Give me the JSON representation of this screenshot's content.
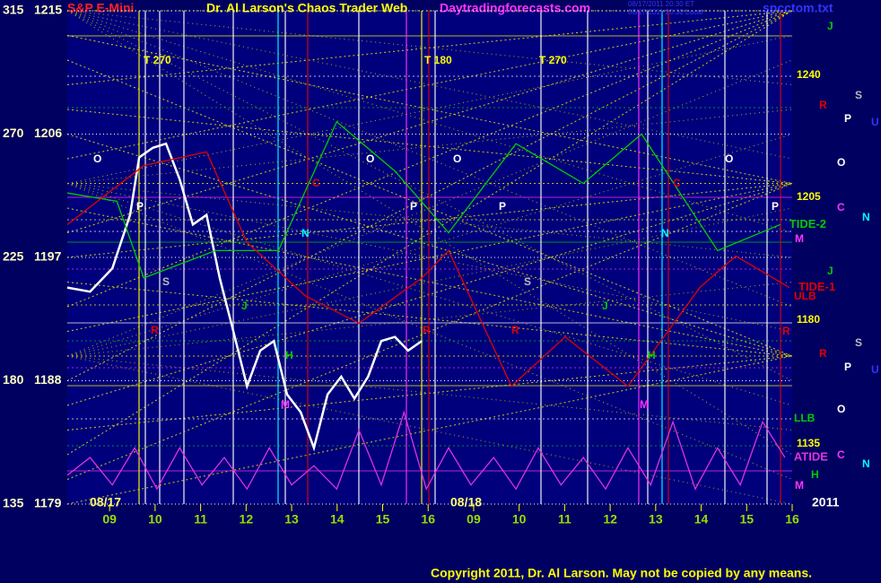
{
  "chart_data": {
    "type": "line",
    "instrument": "S&P E-Mini",
    "title": "Dr. Al Larson's Chaos Trader Web",
    "site": "Daytradingforecasts.com",
    "timestamps": [
      "08/17/2011 20:30 ET",
      "08/17/2011 20:30 Local"
    ],
    "file": "spcctom.txt",
    "copyright": "Copyright 2011, Dr. Al Larson. May not be copied by any means.",
    "dates": [
      "08/17",
      "08/18"
    ],
    "year": "2011",
    "xlim": [
      0.07,
      16
    ],
    "xticks": [
      {
        "value": 1,
        "label": "09"
      },
      {
        "value": 2,
        "label": "10"
      },
      {
        "value": 3,
        "label": "11"
      },
      {
        "value": 4,
        "label": "12"
      },
      {
        "value": 5,
        "label": "13"
      },
      {
        "value": 6,
        "label": "14"
      },
      {
        "value": 7,
        "label": "15"
      },
      {
        "value": 8,
        "label": "16"
      },
      {
        "value": 9,
        "label": "09"
      },
      {
        "value": 10,
        "label": "10"
      },
      {
        "value": 11,
        "label": "11"
      },
      {
        "value": 12,
        "label": "12"
      },
      {
        "value": 13,
        "label": "13"
      },
      {
        "value": 14,
        "label": "14"
      },
      {
        "value": 15,
        "label": "15"
      },
      {
        "value": 16,
        "label": "16"
      }
    ],
    "ylim": [
      1179,
      1215
    ],
    "yticks": [
      1179,
      1188,
      1197,
      1206,
      1215
    ],
    "y2lim": [
      135,
      315
    ],
    "y2ticks": [
      135,
      180,
      225,
      270,
      315
    ],
    "series": [
      {
        "color": "#ffffff",
        "x": [
          0.07,
          0.57,
          1.06,
          1.45,
          1.65,
          1.95,
          2.24,
          2.54,
          2.83,
          3.13,
          3.42,
          3.72,
          4.02,
          4.31,
          4.61,
          4.9,
          5.2,
          5.49,
          5.79,
          6.09,
          6.38,
          6.68,
          6.97,
          7.27,
          7.56,
          7.86
        ],
        "values": [
          1194.8,
          1194.5,
          1196.2,
          1200.1,
          1204.3,
          1205.0,
          1205.3,
          1202.7,
          1199.4,
          1200.1,
          1195.5,
          1191.6,
          1187.6,
          1190.2,
          1190.9,
          1187.0,
          1185.7,
          1183.1,
          1187.0,
          1188.3,
          1186.7,
          1188.3,
          1190.9,
          1191.2,
          1190.2,
          1190.9
        ]
      },
      {
        "name": "TIDE-2",
        "color": "#00cc00",
        "x": [
          0.07,
          1.16,
          1.75,
          3.33,
          4.71,
          5.99,
          7.27,
          8.45,
          9.93,
          11.41,
          12.69,
          14.36,
          15.74
        ],
        "values": [
          1201.7,
          1201.1,
          1195.5,
          1197.5,
          1197.5,
          1206.9,
          1203.3,
          1198.8,
          1205.3,
          1202.4,
          1206.0,
          1197.5,
          1199.4
        ]
      },
      {
        "name": "TIDE-1",
        "color": "#e00000",
        "x": [
          0.07,
          1.75,
          3.13,
          4.02,
          5.3,
          6.48,
          7.86,
          8.45,
          9.83,
          11.01,
          12.39,
          13.97,
          14.76,
          15.94
        ],
        "values": [
          1199.4,
          1203.7,
          1204.7,
          1198.1,
          1194.2,
          1192.2,
          1195.5,
          1197.5,
          1187.6,
          1191.2,
          1187.6,
          1194.8,
          1197.1,
          1194.8
        ]
      },
      {
        "name": "ATIDE",
        "color": "#dd33dd",
        "x": [
          0.07,
          0.57,
          1.06,
          1.55,
          2.04,
          2.54,
          3.03,
          3.52,
          4.02,
          4.51,
          5.0,
          5.49,
          5.99,
          6.48,
          6.97,
          7.47,
          7.96,
          8.45,
          8.94,
          9.44,
          9.93,
          10.42,
          10.92,
          11.41,
          11.9,
          12.39,
          12.89,
          13.38,
          13.87,
          14.36,
          14.86,
          15.35,
          15.84
        ],
        "values": [
          1181.1,
          1182.4,
          1180.4,
          1183.1,
          1180.1,
          1183.1,
          1180.4,
          1182.4,
          1180.1,
          1183.1,
          1180.4,
          1181.8,
          1180.1,
          1184.4,
          1180.4,
          1185.7,
          1180.1,
          1183.1,
          1180.4,
          1182.4,
          1180.1,
          1183.1,
          1180.4,
          1182.4,
          1180.1,
          1183.1,
          1180.4,
          1185.0,
          1180.1,
          1183.1,
          1180.4,
          1185.0,
          1182.4
        ]
      }
    ],
    "annotations": [
      "T  270",
      "T  180",
      "T  270",
      "O",
      "O",
      "O",
      "O",
      "P",
      "P",
      "P",
      "P",
      "S",
      "S",
      "R",
      "R",
      "R",
      "C",
      "C",
      "N",
      "N",
      "J",
      "J",
      "H",
      "H",
      "M",
      "M"
    ],
    "right_labels": [
      "J",
      "R",
      "S",
      "P",
      "U",
      "O",
      "C",
      "N",
      "M",
      "J",
      "ULB",
      "R",
      "S",
      "R",
      "P",
      "U",
      "LLB",
      "O",
      "C",
      "N",
      "H",
      "M",
      "1240",
      "1205",
      "1180",
      "1135"
    ]
  }
}
